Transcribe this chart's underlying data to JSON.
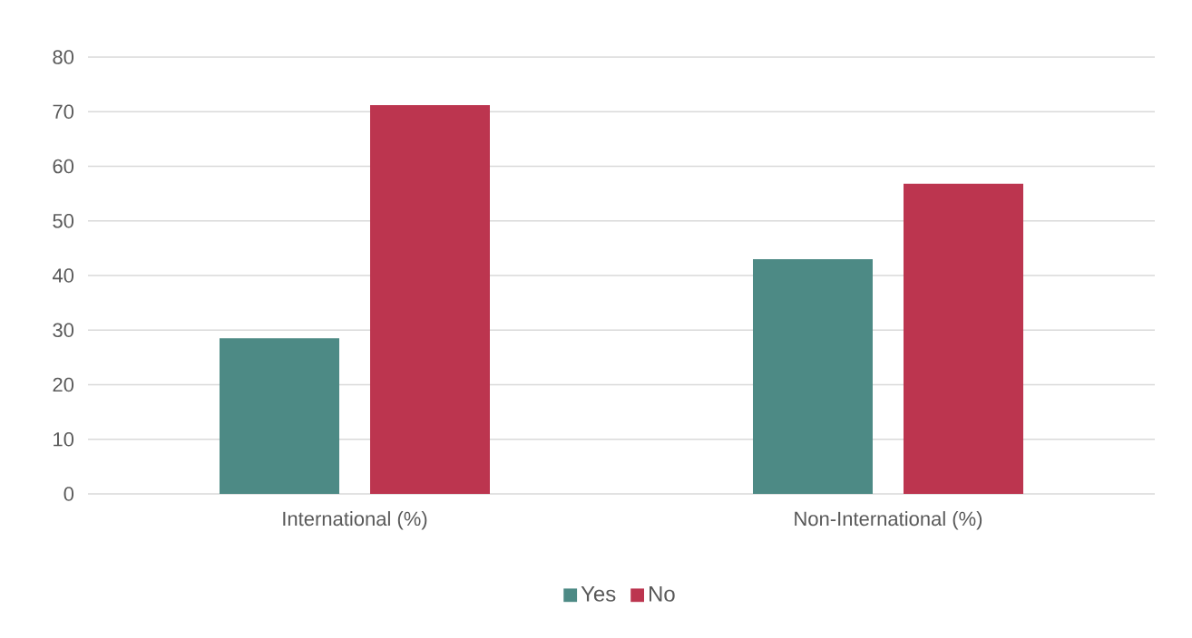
{
  "chart_data": {
    "type": "bar",
    "categories": [
      "International (%)",
      "Non-International (%)"
    ],
    "series": [
      {
        "name": "Yes",
        "color": "#4d8a85",
        "values": [
          28.5,
          43.0
        ]
      },
      {
        "name": "No",
        "color": "#bc354f",
        "values": [
          71.2,
          56.8
        ]
      }
    ],
    "ylim": [
      0,
      80
    ],
    "yticks": [
      0,
      10,
      20,
      30,
      40,
      50,
      60,
      70,
      80
    ],
    "grid": "y",
    "legend": "bottom"
  }
}
